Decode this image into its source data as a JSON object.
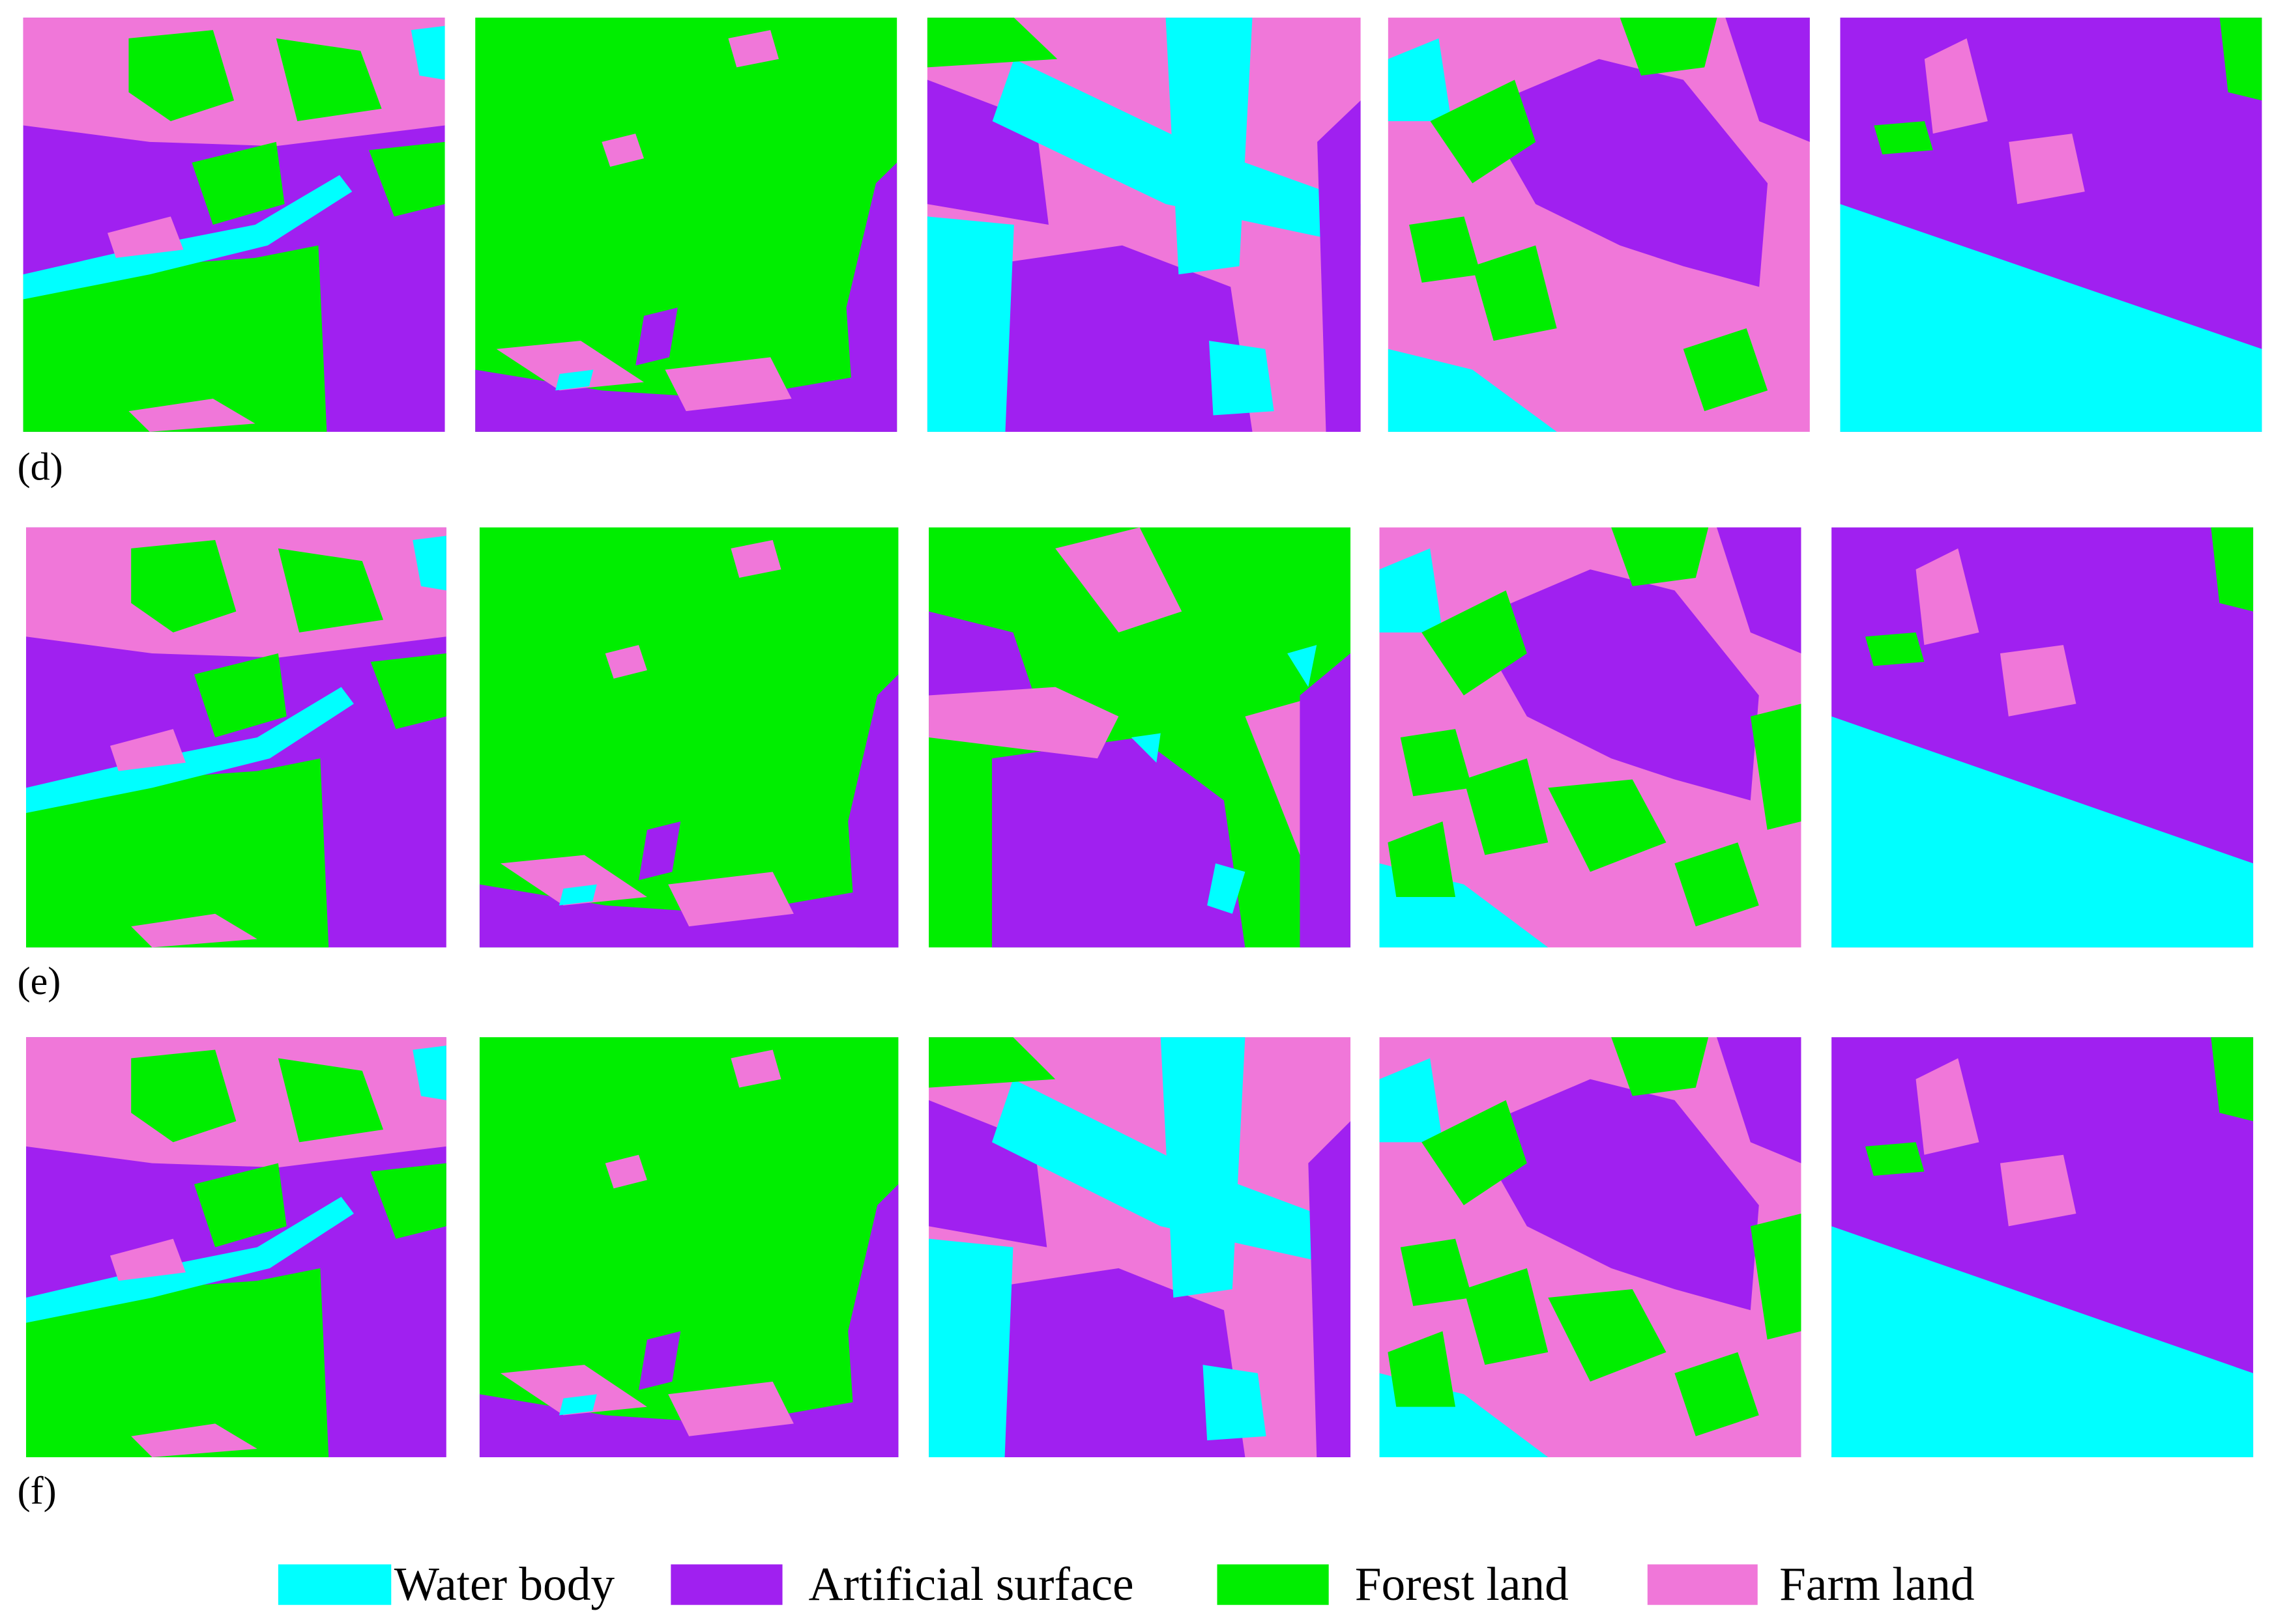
{
  "panels": [
    {
      "label": "(d)"
    },
    {
      "label": "(e)"
    },
    {
      "label": "(f)"
    }
  ],
  "legend": [
    {
      "name": "Water body",
      "color": "#00FFFF"
    },
    {
      "name": "Artificial surface",
      "color": "#A020F0"
    },
    {
      "name": "Forest land",
      "color": "#00EE00"
    },
    {
      "name": "Farm land",
      "color": "#F077D9"
    }
  ]
}
